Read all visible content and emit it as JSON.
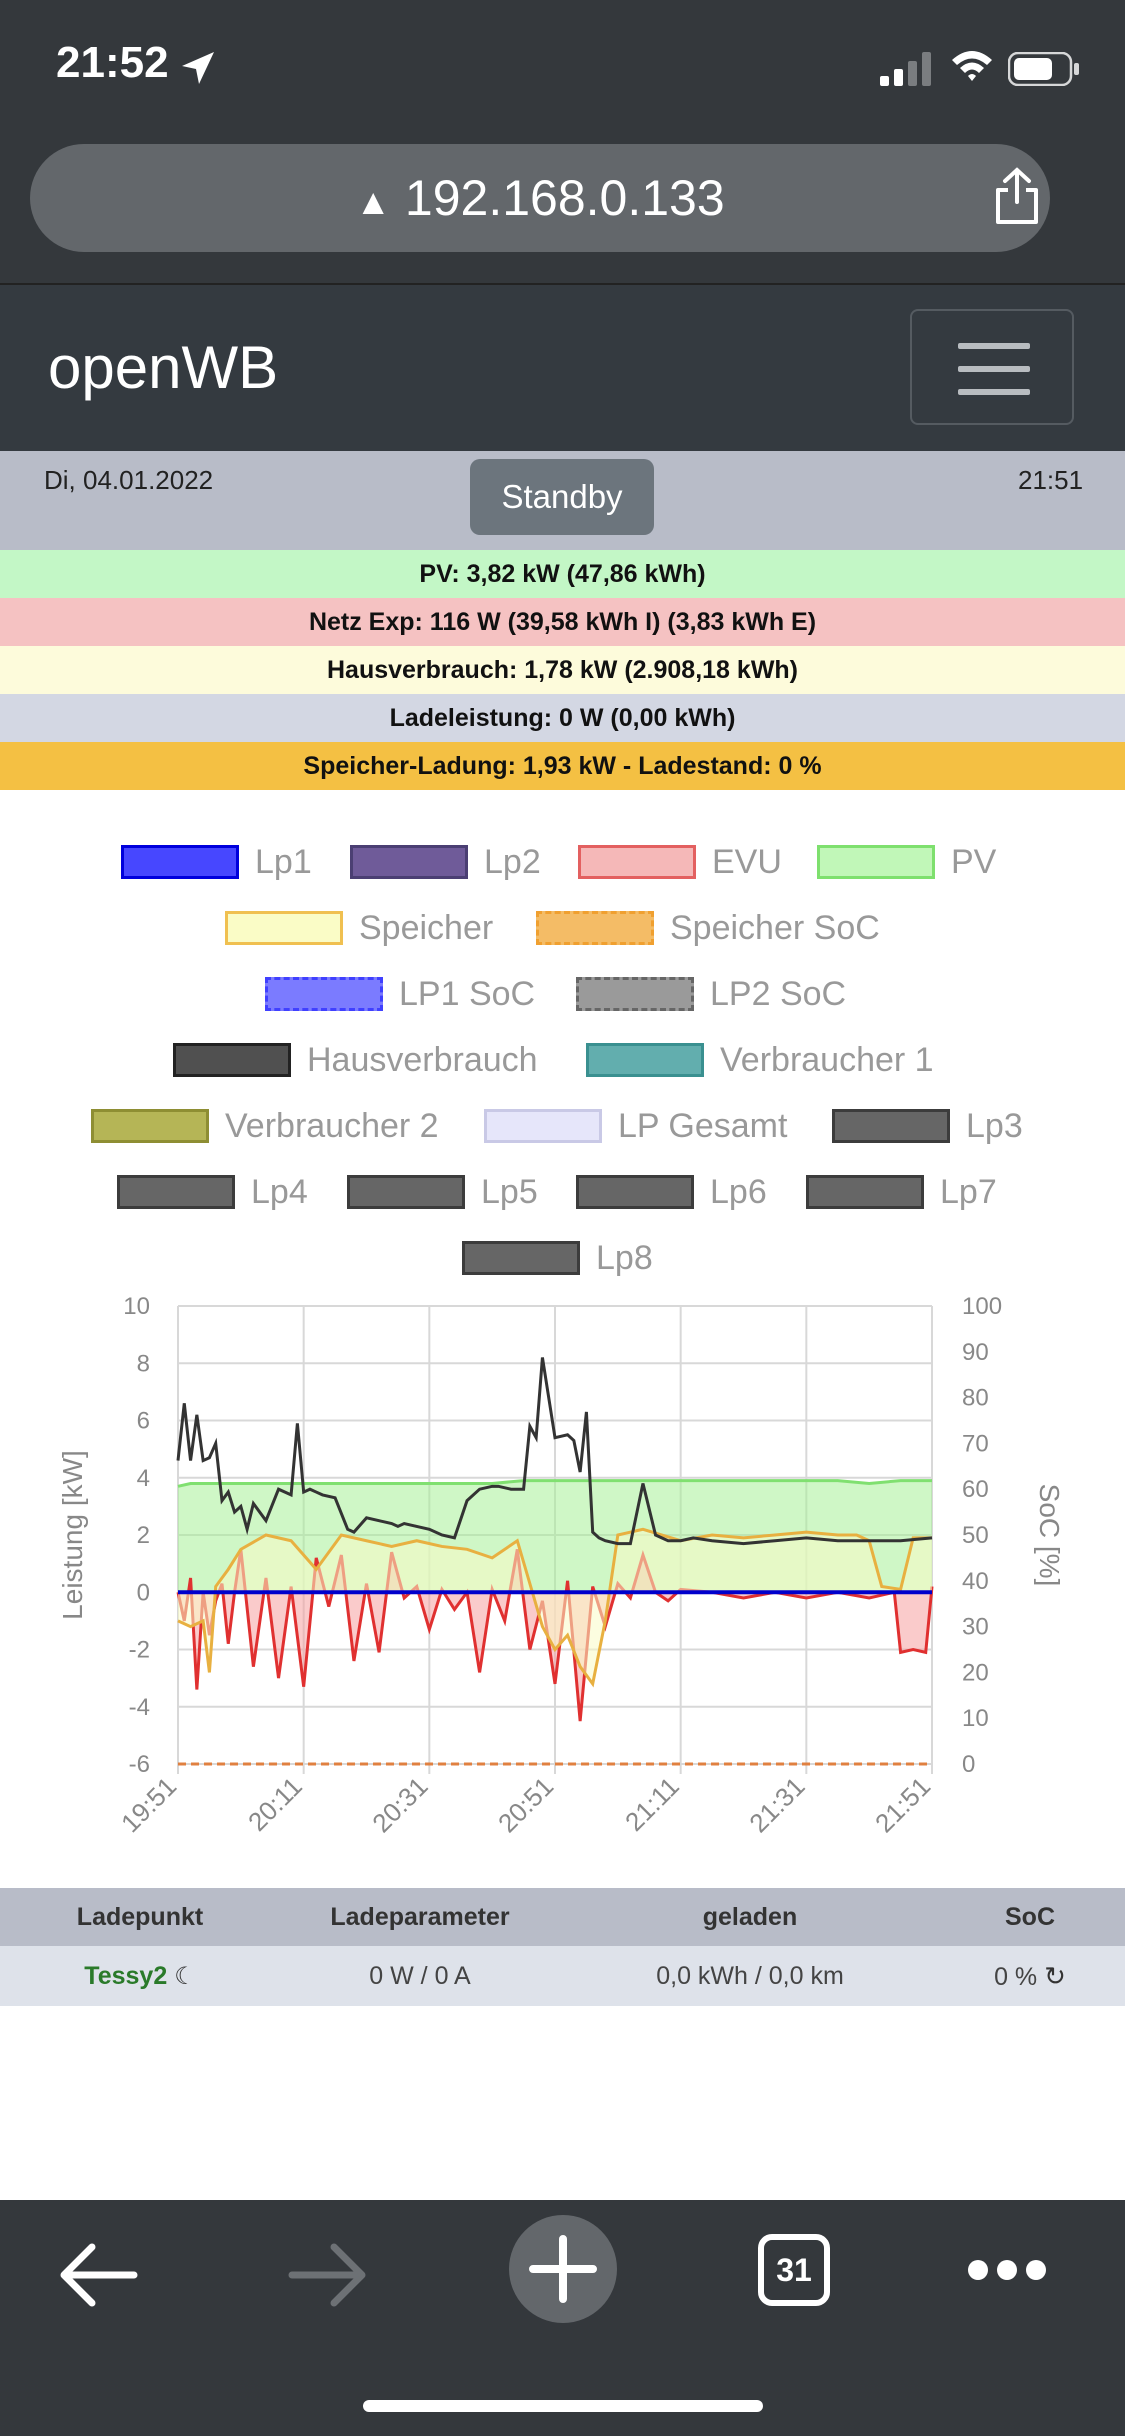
{
  "status_bar": {
    "time": "21:52"
  },
  "browser": {
    "url": "192.168.0.133",
    "tab_count": "31"
  },
  "app": {
    "brand": "openWB"
  },
  "header": {
    "date": "Di, 04.01.2022",
    "mode_button": "Standby",
    "clock": "21:51"
  },
  "summary": {
    "pv": "PV: 3,82 kW (47,86 kWh)",
    "netz": "Netz Exp: 116 W (39,58 kWh I) (3,83 kWh E)",
    "haus": "Hausverbrauch: 1,78 kW (2.908,18 kWh)",
    "lade": "Ladeleistung: 0 W (0,00 kWh)",
    "speicher": "Speicher-Ladung: 1,93 kW - Ladestand: 0 %"
  },
  "colors": {
    "pv_row": "#c3f7c6",
    "netz_row": "#f5c2c2",
    "haus_row": "#fdfbdb",
    "lade_row": "#d3d7e3",
    "speicher_row": "#f4c043"
  },
  "legend": [
    {
      "label": "Lp1",
      "fill": "#4747ff",
      "border": "#0000dd",
      "dashed": false
    },
    {
      "label": "Lp2",
      "fill": "#6f5b99",
      "border": "#4b3f73",
      "dashed": false
    },
    {
      "label": "EVU",
      "fill": "#f5b8b8",
      "border": "#e36060",
      "dashed": false
    },
    {
      "label": "PV",
      "fill": "#c1f7b8",
      "border": "#7ee06e",
      "dashed": false
    },
    {
      "label": "Speicher",
      "fill": "#fafcc6",
      "border": "#f0c050",
      "dashed": false
    },
    {
      "label": "Speicher SoC",
      "fill": "#f4bc66",
      "border": "#f0a030",
      "dashed": true
    },
    {
      "label": "LP1 SoC",
      "fill": "#7b7bff",
      "border": "#4040ff",
      "dashed": true
    },
    {
      "label": "LP2 SoC",
      "fill": "#9a9a9a",
      "border": "#666666",
      "dashed": true
    },
    {
      "label": "Hausverbrauch",
      "fill": "#505050",
      "border": "#222222",
      "dashed": false
    },
    {
      "label": "Verbraucher 1",
      "fill": "#62aeae",
      "border": "#3a9090",
      "dashed": false
    },
    {
      "label": "Verbraucher 2",
      "fill": "#b5b556",
      "border": "#8e8e33",
      "dashed": false
    },
    {
      "label": "LP Gesamt",
      "fill": "#e6e6fa",
      "border": "#c9c9e6",
      "dashed": false
    },
    {
      "label": "Lp3",
      "fill": "#666666",
      "border": "#3c3c3c",
      "dashed": false
    },
    {
      "label": "Lp4",
      "fill": "#666666",
      "border": "#3c3c3c",
      "dashed": false
    },
    {
      "label": "Lp5",
      "fill": "#666666",
      "border": "#3c3c3c",
      "dashed": false
    },
    {
      "label": "Lp6",
      "fill": "#666666",
      "border": "#3c3c3c",
      "dashed": false
    },
    {
      "label": "Lp7",
      "fill": "#666666",
      "border": "#3c3c3c",
      "dashed": false
    },
    {
      "label": "Lp8",
      "fill": "#666666",
      "border": "#3c3c3c",
      "dashed": false
    }
  ],
  "chart_data": {
    "type": "line",
    "title": "",
    "ylabel": "Leistung [kW]",
    "y2label": "SoC [%]",
    "ylim": [
      -6,
      10
    ],
    "y2lim": [
      0,
      100
    ],
    "yticks": [
      10,
      8,
      6,
      4,
      2,
      0,
      -2,
      -4,
      -6
    ],
    "y2ticks": [
      100,
      90,
      80,
      70,
      60,
      50,
      40,
      30,
      20,
      10,
      0
    ],
    "xticks": [
      "19:51",
      "20:11",
      "20:31",
      "20:51",
      "21:11",
      "21:31",
      "21:51"
    ],
    "xlim_minutes": [
      0,
      120
    ],
    "series": [
      {
        "name": "PV",
        "color": "#80e070",
        "x": [
          0,
          2,
          5,
          10,
          15,
          20,
          25,
          30,
          35,
          40,
          45,
          50,
          55,
          60,
          65,
          70,
          75,
          80,
          85,
          90,
          95,
          100,
          105,
          110,
          115,
          120
        ],
        "values": [
          3.7,
          3.8,
          3.8,
          3.8,
          3.8,
          3.8,
          3.8,
          3.8,
          3.8,
          3.8,
          3.8,
          3.8,
          3.9,
          3.9,
          3.9,
          3.9,
          3.9,
          3.9,
          3.9,
          3.9,
          3.9,
          3.9,
          3.9,
          3.8,
          3.9,
          3.9
        ]
      },
      {
        "name": "Hausverbrauch",
        "color": "#333333",
        "x": [
          0,
          1,
          2,
          3,
          4,
          5,
          6,
          7,
          8,
          9,
          10,
          11,
          12,
          14,
          16,
          18,
          19,
          20,
          21,
          22,
          23,
          25,
          27,
          28,
          30,
          32,
          34,
          35,
          36,
          38,
          40,
          42,
          44,
          46,
          48,
          50,
          51,
          53,
          55,
          56,
          57,
          58,
          60,
          62,
          63,
          64,
          65,
          66,
          67,
          68,
          70,
          72,
          74,
          76,
          78,
          80,
          82,
          85,
          90,
          95,
          100,
          105,
          110,
          115,
          120
        ],
        "values": [
          4.6,
          6.6,
          4.6,
          6.2,
          4.6,
          4.7,
          5.2,
          3.2,
          3.5,
          2.8,
          3.0,
          2.2,
          3.1,
          2.5,
          3.6,
          3.4,
          5.9,
          3.5,
          3.6,
          3.5,
          3.4,
          3.3,
          2.2,
          2.1,
          2.6,
          2.5,
          2.4,
          2.3,
          2.4,
          2.3,
          2.2,
          2.0,
          1.9,
          3.2,
          3.6,
          3.7,
          3.7,
          3.6,
          3.6,
          5.8,
          5.4,
          8.2,
          5.4,
          5.5,
          5.3,
          4.2,
          6.3,
          2.1,
          1.9,
          1.8,
          1.7,
          1.7,
          3.8,
          2.0,
          1.8,
          1.8,
          1.9,
          1.8,
          1.7,
          1.8,
          1.9,
          1.8,
          1.8,
          1.8,
          1.9
        ]
      },
      {
        "name": "Speicher",
        "color": "#e8b040",
        "x": [
          0,
          2,
          4,
          5,
          6,
          8,
          10,
          14,
          18,
          22,
          26,
          30,
          34,
          38,
          42,
          46,
          50,
          54,
          58,
          60,
          62,
          64,
          66,
          68,
          70,
          74,
          80,
          85,
          90,
          95,
          100,
          105,
          108,
          110,
          112,
          115,
          117,
          120
        ],
        "values": [
          -1.0,
          -1.2,
          -1.0,
          -2.8,
          0.2,
          0.8,
          1.5,
          2.0,
          1.8,
          0.8,
          2.0,
          1.8,
          1.6,
          1.8,
          1.6,
          1.5,
          1.2,
          1.8,
          -1.2,
          -2.0,
          -1.5,
          -2.6,
          -3.2,
          -1.0,
          2.0,
          2.2,
          1.8,
          2.0,
          1.9,
          2.0,
          2.1,
          2.0,
          2.0,
          1.8,
          0.2,
          0.1,
          1.9,
          1.9
        ]
      },
      {
        "name": "EVU",
        "color": "#e03030",
        "x": [
          0,
          1,
          2,
          3,
          4,
          5,
          6,
          7,
          8,
          9,
          10,
          12,
          14,
          16,
          18,
          20,
          22,
          24,
          26,
          28,
          30,
          32,
          34,
          36,
          38,
          40,
          42,
          44,
          46,
          48,
          50,
          52,
          54,
          56,
          58,
          60,
          62,
          64,
          66,
          68,
          70,
          72,
          74,
          76,
          78,
          80,
          85,
          90,
          95,
          100,
          105,
          110,
          114,
          115,
          117,
          119,
          120
        ],
        "values": [
          0.0,
          -1.0,
          0.5,
          -3.4,
          0.0,
          -1.5,
          -0.3,
          0.3,
          -1.8,
          0.0,
          1.5,
          -2.6,
          0.5,
          -3.0,
          0.2,
          -3.3,
          1.2,
          -0.5,
          1.3,
          -2.4,
          0.3,
          -2.1,
          1.4,
          -0.2,
          0.2,
          -1.3,
          0.1,
          -0.6,
          0.0,
          -2.8,
          0.1,
          -1.0,
          1.5,
          -2.0,
          -0.3,
          -3.2,
          0.4,
          -4.5,
          0.2,
          -1.2,
          0.3,
          -0.2,
          1.3,
          0.0,
          -0.3,
          0.1,
          0.0,
          -0.2,
          0.0,
          -0.2,
          0.0,
          -0.2,
          0.0,
          -2.1,
          -2.0,
          -2.1,
          0.2
        ]
      },
      {
        "name": "Lp1",
        "color": "#0000cc",
        "x": [
          0,
          120
        ],
        "values": [
          0.0,
          0.0
        ]
      },
      {
        "name": "Speicher SoC",
        "color": "#e08040",
        "axis": "soc",
        "x": [
          0,
          120
        ],
        "values": [
          0,
          0
        ]
      }
    ]
  },
  "table": {
    "headers": [
      "Ladepunkt",
      "Ladeparameter",
      "geladen",
      "SoC"
    ],
    "rows": [
      {
        "name": "Tessy2",
        "param": "0 W / 0 A",
        "charged": "0,0 kWh / 0,0 km",
        "soc": "0 %"
      }
    ]
  }
}
